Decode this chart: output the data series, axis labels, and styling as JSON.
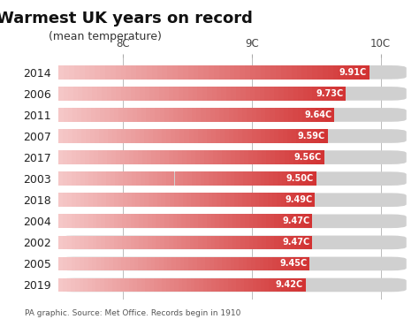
{
  "title": "Warmest UK years on record",
  "subtitle": "(mean temperature)",
  "years": [
    "2014",
    "2006",
    "2011",
    "2007",
    "2017",
    "2003",
    "2018",
    "2004",
    "2002",
    "2005",
    "2019"
  ],
  "values": [
    9.91,
    9.73,
    9.64,
    9.59,
    9.56,
    9.5,
    9.49,
    9.47,
    9.47,
    9.45,
    9.42
  ],
  "labels": [
    "9.91C",
    "9.73C",
    "9.64C",
    "9.59C",
    "9.56C",
    "9.50C",
    "9.49C",
    "9.47C",
    "9.47C",
    "9.45C",
    "9.42C"
  ],
  "xmin": 7.5,
  "xmax": 10.2,
  "xticks": [
    8,
    9,
    10
  ],
  "xtick_labels": [
    "8C",
    "9C",
    "10C"
  ],
  "bar_color_left": "#f5c6c6",
  "bar_color_right": "#e03030",
  "bg_color": "#f0f0f0",
  "track_color": "#d0d0d0",
  "text_color_white": "#ffffff",
  "year_color": "#222222",
  "title_color": "#111111",
  "footer": "PA graphic. Source: Met Office. Records begin in 1910",
  "bar_height": 0.65
}
